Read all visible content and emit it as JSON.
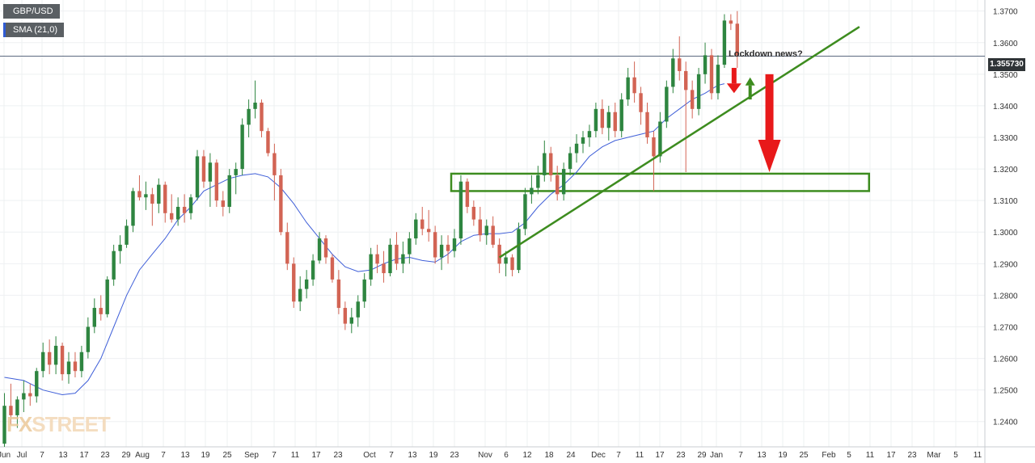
{
  "legend": {
    "symbol": "GBP/USD",
    "indicator": "SMA (21,0)"
  },
  "price_label": "1.355730",
  "annotation": "Lockdown news?",
  "watermark": {
    "prefix": "FX",
    "suffix": "STREET"
  },
  "colors": {
    "bull": "#2e8540",
    "bear": "#d26454",
    "sma": "#3f5fd8",
    "annotation_green": "#3d8c1f",
    "annotation_red": "#e8191a",
    "grid": "#eef0f2",
    "axis_text": "#333333"
  },
  "chart_data": {
    "type": "candlestick",
    "symbol": "GBP/USD",
    "ylim": [
      1.232,
      1.3735
    ],
    "y_ticks": [
      "1.2400",
      "1.2500",
      "1.2600",
      "1.2700",
      "1.2800",
      "1.2900",
      "1.3000",
      "1.3100",
      "1.3200",
      "1.3300",
      "1.3400",
      "1.3500",
      "1.3600",
      "1.3700"
    ],
    "x_ticks": [
      "Jun",
      "Jul",
      "7",
      "13",
      "17",
      "23",
      "29",
      "Aug",
      "7",
      "13",
      "19",
      "25",
      "Sep",
      "7",
      "11",
      "17",
      "23",
      "Oct",
      "7",
      "13",
      "19",
      "23",
      "Nov",
      "6",
      "12",
      "18",
      "24",
      "Dec",
      "7",
      "11",
      "17",
      "23",
      "29",
      "Jan",
      "7",
      "13",
      "19",
      "25",
      "Feb",
      "5",
      "11",
      "17",
      "23",
      "Mar",
      "5",
      "11"
    ],
    "last_price": 1.35573,
    "candles": [
      [
        1.233,
        1.249,
        1.232,
        1.245
      ],
      [
        1.245,
        1.252,
        1.239,
        1.242
      ],
      [
        1.242,
        1.248,
        1.238,
        1.247
      ],
      [
        1.247,
        1.253,
        1.243,
        1.249
      ],
      [
        1.249,
        1.252,
        1.245,
        1.248
      ],
      [
        1.248,
        1.257,
        1.246,
        1.256
      ],
      [
        1.256,
        1.265,
        1.254,
        1.262
      ],
      [
        1.262,
        1.266,
        1.255,
        1.258
      ],
      [
        1.258,
        1.267,
        1.255,
        1.264
      ],
      [
        1.264,
        1.265,
        1.253,
        1.255
      ],
      [
        1.255,
        1.262,
        1.252,
        1.259
      ],
      [
        1.259,
        1.262,
        1.254,
        1.256
      ],
      [
        1.256,
        1.264,
        1.254,
        1.262
      ],
      [
        1.262,
        1.273,
        1.26,
        1.27
      ],
      [
        1.27,
        1.279,
        1.268,
        1.276
      ],
      [
        1.276,
        1.28,
        1.272,
        1.274
      ],
      [
        1.274,
        1.286,
        1.273,
        1.285
      ],
      [
        1.285,
        1.296,
        1.283,
        1.294
      ],
      [
        1.294,
        1.299,
        1.29,
        1.296
      ],
      [
        1.296,
        1.304,
        1.295,
        1.302
      ],
      [
        1.302,
        1.314,
        1.3,
        1.313
      ],
      [
        1.313,
        1.318,
        1.31,
        1.311
      ],
      [
        1.311,
        1.316,
        1.307,
        1.312
      ],
      [
        1.312,
        1.314,
        1.302,
        1.309
      ],
      [
        1.309,
        1.317,
        1.306,
        1.315
      ],
      [
        1.315,
        1.316,
        1.303,
        1.306
      ],
      [
        1.306,
        1.312,
        1.303,
        1.304
      ],
      [
        1.304,
        1.311,
        1.302,
        1.308
      ],
      [
        1.308,
        1.312,
        1.303,
        1.306
      ],
      [
        1.306,
        1.312,
        1.304,
        1.311
      ],
      [
        1.311,
        1.326,
        1.31,
        1.324
      ],
      [
        1.324,
        1.326,
        1.314,
        1.316
      ],
      [
        1.316,
        1.325,
        1.308,
        1.322
      ],
      [
        1.322,
        1.323,
        1.308,
        1.31
      ],
      [
        1.31,
        1.313,
        1.305,
        1.308
      ],
      [
        1.308,
        1.32,
        1.306,
        1.318
      ],
      [
        1.318,
        1.322,
        1.312,
        1.32
      ],
      [
        1.32,
        1.336,
        1.318,
        1.334
      ],
      [
        1.334,
        1.342,
        1.33,
        1.339
      ],
      [
        1.339,
        1.348,
        1.336,
        1.341
      ],
      [
        1.341,
        1.342,
        1.33,
        1.332
      ],
      [
        1.332,
        1.333,
        1.324,
        1.325
      ],
      [
        1.325,
        1.328,
        1.31,
        1.318
      ],
      [
        1.318,
        1.32,
        1.299,
        1.3
      ],
      [
        1.3,
        1.303,
        1.288,
        1.29
      ],
      [
        1.29,
        1.292,
        1.276,
        1.278
      ],
      [
        1.278,
        1.286,
        1.275,
        1.282
      ],
      [
        1.282,
        1.288,
        1.279,
        1.285
      ],
      [
        1.285,
        1.293,
        1.283,
        1.291
      ],
      [
        1.291,
        1.3,
        1.29,
        1.298
      ],
      [
        1.298,
        1.299,
        1.29,
        1.292
      ],
      [
        1.292,
        1.293,
        1.284,
        1.285
      ],
      [
        1.285,
        1.288,
        1.274,
        1.276
      ],
      [
        1.276,
        1.278,
        1.269,
        1.271
      ],
      [
        1.271,
        1.276,
        1.268,
        1.273
      ],
      [
        1.273,
        1.28,
        1.27,
        1.278
      ],
      [
        1.278,
        1.287,
        1.276,
        1.285
      ],
      [
        1.285,
        1.295,
        1.283,
        1.293
      ],
      [
        1.293,
        1.296,
        1.287,
        1.29
      ],
      [
        1.29,
        1.294,
        1.284,
        1.287
      ],
      [
        1.287,
        1.298,
        1.286,
        1.296
      ],
      [
        1.296,
        1.3,
        1.288,
        1.29
      ],
      [
        1.29,
        1.297,
        1.287,
        1.293
      ],
      [
        1.293,
        1.3,
        1.29,
        1.298
      ],
      [
        1.298,
        1.306,
        1.296,
        1.304
      ],
      [
        1.304,
        1.308,
        1.299,
        1.301
      ],
      [
        1.301,
        1.307,
        1.297,
        1.3
      ],
      [
        1.3,
        1.302,
        1.29,
        1.292
      ],
      [
        1.292,
        1.299,
        1.288,
        1.296
      ],
      [
        1.296,
        1.299,
        1.29,
        1.294
      ],
      [
        1.294,
        1.301,
        1.292,
        1.298
      ],
      [
        1.298,
        1.318,
        1.296,
        1.316
      ],
      [
        1.316,
        1.317,
        1.306,
        1.308
      ],
      [
        1.308,
        1.31,
        1.302,
        1.304
      ],
      [
        1.304,
        1.308,
        1.297,
        1.299
      ],
      [
        1.299,
        1.304,
        1.296,
        1.302
      ],
      [
        1.302,
        1.305,
        1.295,
        1.296
      ],
      [
        1.296,
        1.298,
        1.287,
        1.29
      ],
      [
        1.29,
        1.294,
        1.286,
        1.292
      ],
      [
        1.292,
        1.293,
        1.286,
        1.288
      ],
      [
        1.288,
        1.303,
        1.287,
        1.301
      ],
      [
        1.301,
        1.314,
        1.299,
        1.312
      ],
      [
        1.312,
        1.318,
        1.309,
        1.314
      ],
      [
        1.314,
        1.321,
        1.312,
        1.318
      ],
      [
        1.318,
        1.329,
        1.316,
        1.325
      ],
      [
        1.325,
        1.327,
        1.316,
        1.318
      ],
      [
        1.318,
        1.321,
        1.31,
        1.312
      ],
      [
        1.312,
        1.322,
        1.31,
        1.32
      ],
      [
        1.32,
        1.327,
        1.318,
        1.325
      ],
      [
        1.325,
        1.331,
        1.322,
        1.328
      ],
      [
        1.328,
        1.332,
        1.325,
        1.33
      ],
      [
        1.33,
        1.334,
        1.327,
        1.332
      ],
      [
        1.332,
        1.341,
        1.33,
        1.339
      ],
      [
        1.339,
        1.342,
        1.331,
        1.333
      ],
      [
        1.333,
        1.34,
        1.329,
        1.338
      ],
      [
        1.338,
        1.341,
        1.33,
        1.332
      ],
      [
        1.332,
        1.344,
        1.33,
        1.342
      ],
      [
        1.342,
        1.352,
        1.34,
        1.349
      ],
      [
        1.349,
        1.354,
        1.341,
        1.344
      ],
      [
        1.344,
        1.346,
        1.334,
        1.338
      ],
      [
        1.338,
        1.341,
        1.328,
        1.33
      ],
      [
        1.33,
        1.332,
        1.313,
        1.324
      ],
      [
        1.324,
        1.338,
        1.322,
        1.335
      ],
      [
        1.335,
        1.348,
        1.333,
        1.346
      ],
      [
        1.346,
        1.358,
        1.344,
        1.355
      ],
      [
        1.355,
        1.362,
        1.348,
        1.351
      ],
      [
        1.351,
        1.354,
        1.319,
        1.345
      ],
      [
        1.345,
        1.348,
        1.336,
        1.339
      ],
      [
        1.339,
        1.352,
        1.337,
        1.35
      ],
      [
        1.35,
        1.36,
        1.347,
        1.356
      ],
      [
        1.356,
        1.358,
        1.342,
        1.344
      ],
      [
        1.344,
        1.356,
        1.342,
        1.353
      ],
      [
        1.353,
        1.369,
        1.352,
        1.367
      ],
      [
        1.367,
        1.369,
        1.364,
        1.366
      ],
      [
        1.366,
        1.37,
        1.352,
        1.356
      ]
    ],
    "sma": [
      [
        0,
        1.254
      ],
      [
        3,
        1.253
      ],
      [
        6,
        1.25
      ],
      [
        9,
        1.2485
      ],
      [
        11,
        1.249
      ],
      [
        13,
        1.253
      ],
      [
        15,
        1.26
      ],
      [
        17,
        1.27
      ],
      [
        19,
        1.28
      ],
      [
        21,
        1.288
      ],
      [
        23,
        1.293
      ],
      [
        25,
        1.298
      ],
      [
        27,
        1.304
      ],
      [
        29,
        1.308
      ],
      [
        31,
        1.313
      ],
      [
        33,
        1.315
      ],
      [
        35,
        1.317
      ],
      [
        37,
        1.318
      ],
      [
        39,
        1.3185
      ],
      [
        41,
        1.3175
      ],
      [
        43,
        1.314
      ],
      [
        45,
        1.309
      ],
      [
        47,
        1.303
      ],
      [
        49,
        1.298
      ],
      [
        51,
        1.293
      ],
      [
        53,
        1.289
      ],
      [
        55,
        1.2875
      ],
      [
        57,
        1.288
      ],
      [
        59,
        1.29
      ],
      [
        61,
        1.2915
      ],
      [
        63,
        1.292
      ],
      [
        65,
        1.291
      ],
      [
        67,
        1.2905
      ],
      [
        69,
        1.293
      ],
      [
        71,
        1.297
      ],
      [
        73,
        1.299
      ],
      [
        75,
        1.2995
      ],
      [
        77,
        1.2995
      ],
      [
        79,
        1.3
      ],
      [
        81,
        1.303
      ],
      [
        83,
        1.308
      ],
      [
        85,
        1.312
      ],
      [
        87,
        1.315
      ],
      [
        89,
        1.319
      ],
      [
        91,
        1.324
      ],
      [
        93,
        1.327
      ],
      [
        95,
        1.329
      ],
      [
        97,
        1.33
      ],
      [
        99,
        1.331
      ],
      [
        101,
        1.332
      ],
      [
        103,
        1.336
      ],
      [
        105,
        1.339
      ],
      [
        107,
        1.342
      ],
      [
        109,
        1.344
      ],
      [
        111,
        1.3465
      ],
      [
        112,
        1.347
      ]
    ],
    "annotations": {
      "trendline": [
        [
          77,
          1.292
        ],
        [
          133,
          1.365
        ]
      ],
      "support_zone": {
        "x_from": 69.5,
        "x_to": 134.5,
        "top": 1.3185,
        "bottom": 1.313
      },
      "small_red_arrow": {
        "x": 113.5,
        "from": 1.352,
        "to": 1.344
      },
      "green_arrow": {
        "x": 116,
        "from": 1.342,
        "to": 1.349
      },
      "big_red_arrow": {
        "x": 119,
        "from": 1.35,
        "to": 1.319
      }
    }
  }
}
